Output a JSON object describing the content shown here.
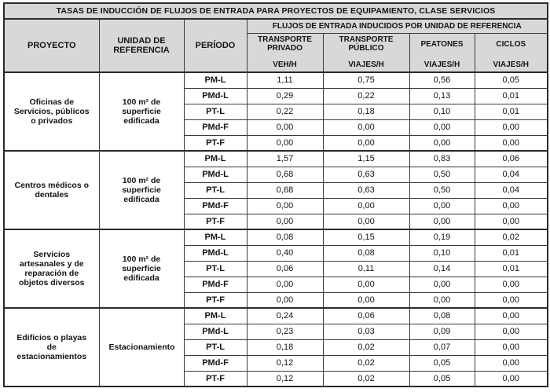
{
  "title": "TASAS DE INDUCCIÓN DE FLUJOS DE ENTRADA PARA PROYECTOS DE EQUIPAMIENTO, CLASE SERVICIOS",
  "header": {
    "proyecto": "PROYECTO",
    "unidad_referencia": "UNIDAD DE REFERENCIA",
    "periodo": "PERÍODO",
    "flujos": "FLUJOS DE ENTRADA INDUCIDOS POR UNIDAD DE REFERENCIA",
    "flow_columns": [
      {
        "name": "TRANSPORTE PRIVADO",
        "unit": "VEH/H"
      },
      {
        "name": "TRANSPORTE PÚBLICO",
        "unit": "VIAJES/H"
      },
      {
        "name": "PEATONES",
        "unit": "VIAJES/H"
      },
      {
        "name": "CICLOS",
        "unit": "VIAJES/H"
      }
    ]
  },
  "colors": {
    "header_bg": "#d8d8d8",
    "border": "#2a2a2a",
    "text": "#141414"
  },
  "groups": [
    {
      "proyecto": "Oficinas de Servicios, públicos o privados",
      "unidad": "100 m² de superficie edificada",
      "rows": [
        {
          "periodo": "PM-L",
          "values": [
            "1,11",
            "0,75",
            "0,56",
            "0,05"
          ]
        },
        {
          "periodo": "PMd-L",
          "values": [
            "0,29",
            "0,22",
            "0,13",
            "0,01"
          ]
        },
        {
          "periodo": "PT-L",
          "values": [
            "0,22",
            "0,18",
            "0,10",
            "0,01"
          ]
        },
        {
          "periodo": "PMd-F",
          "values": [
            "0,00",
            "0,00",
            "0,00",
            "0,00"
          ]
        },
        {
          "periodo": "PT-F",
          "values": [
            "0,00",
            "0,00",
            "0,00",
            "0,00"
          ]
        }
      ]
    },
    {
      "proyecto": "Centros médicos o dentales",
      "unidad": "100 m² de superficie edificada",
      "rows": [
        {
          "periodo": "PM-L",
          "values": [
            "1,57",
            "1,15",
            "0,83",
            "0,06"
          ]
        },
        {
          "periodo": "PMd-L",
          "values": [
            "0,68",
            "0,63",
            "0,50",
            "0,04"
          ]
        },
        {
          "periodo": "PT-L",
          "values": [
            "0,68",
            "0,63",
            "0,50",
            "0,04"
          ]
        },
        {
          "periodo": "PMd-F",
          "values": [
            "0,00",
            "0,00",
            "0,00",
            "0,00"
          ]
        },
        {
          "periodo": "PT-F",
          "values": [
            "0,00",
            "0,00",
            "0,00",
            "0,00"
          ]
        }
      ]
    },
    {
      "proyecto": "Servicios artesanales y de reparación de objetos diversos",
      "unidad": "100 m² de superficie edificada",
      "rows": [
        {
          "periodo": "PM-L",
          "values": [
            "0,08",
            "0,15",
            "0,19",
            "0,02"
          ]
        },
        {
          "periodo": "PMd-L",
          "values": [
            "0,40",
            "0,08",
            "0,10",
            "0,01"
          ]
        },
        {
          "periodo": "PT-L",
          "values": [
            "0,06",
            "0,11",
            "0,14",
            "0,01"
          ]
        },
        {
          "periodo": "PMd-F",
          "values": [
            "0,00",
            "0,00",
            "0,00",
            "0,00"
          ]
        },
        {
          "periodo": "PT-F",
          "values": [
            "0,00",
            "0,00",
            "0,00",
            "0,00"
          ]
        }
      ]
    },
    {
      "proyecto": "Edificios o playas de estacionamientos",
      "unidad": "Estacionamiento",
      "rows": [
        {
          "periodo": "PM-L",
          "values": [
            "0,24",
            "0,06",
            "0,08",
            "0,00"
          ]
        },
        {
          "periodo": "PMd-L",
          "values": [
            "0,23",
            "0,03",
            "0,09",
            "0,00"
          ]
        },
        {
          "periodo": "PT-L",
          "values": [
            "0,18",
            "0,02",
            "0,07",
            "0,00"
          ]
        },
        {
          "periodo": "PMd-F",
          "values": [
            "0,12",
            "0,02",
            "0,05",
            "0,00"
          ]
        },
        {
          "periodo": "PT-F",
          "values": [
            "0,12",
            "0,02",
            "0,05",
            "0,00"
          ]
        }
      ]
    }
  ]
}
